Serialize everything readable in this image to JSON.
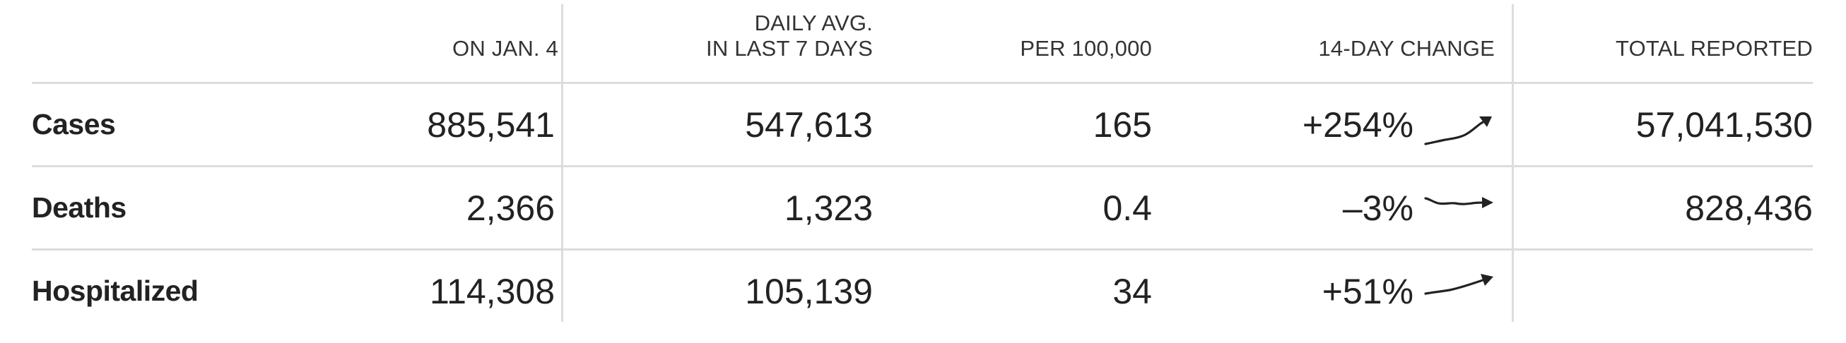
{
  "columns": {
    "date": "ON JAN. 4",
    "daily_avg": "DAILY AVG.\nIN LAST 7 DAYS",
    "per_100k": "PER 100,000",
    "change": "14-DAY CHANGE",
    "total": "TOTAL REPORTED"
  },
  "rows": [
    {
      "label": "Cases",
      "date": "885,541",
      "daily_avg": "547,613",
      "per_100k": "165",
      "change": "+254%",
      "trend": "up-steep",
      "total": "57,041,530"
    },
    {
      "label": "Deaths",
      "date": "2,366",
      "daily_avg": "1,323",
      "per_100k": "0.4",
      "change": "–3%",
      "trend": "flat",
      "total": "828,436"
    },
    {
      "label": "Hospitalized",
      "date": "114,308",
      "daily_avg": "105,139",
      "per_100k": "34",
      "change": "+51%",
      "trend": "up-gentle",
      "total": ""
    }
  ],
  "colors": {
    "rule": "#dcdcdc",
    "text": "#222222",
    "header_text": "#333333"
  }
}
